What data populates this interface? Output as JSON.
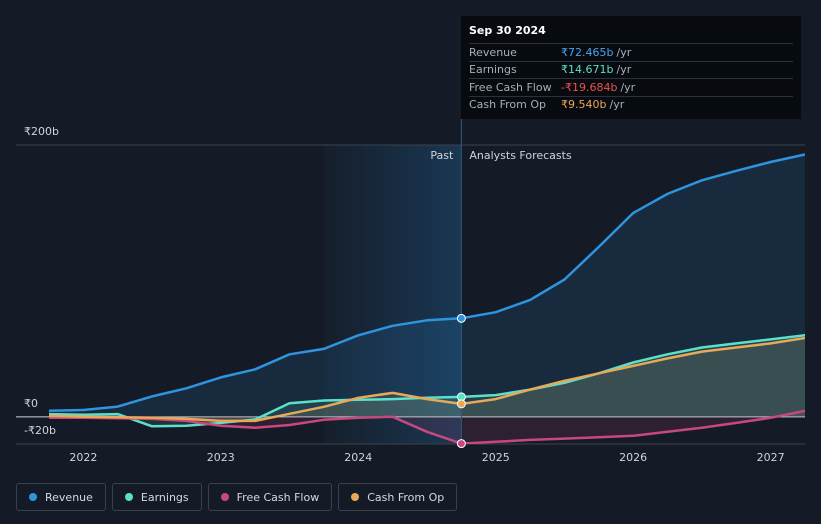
{
  "chart_data": {
    "type": "line",
    "past_label": "Past",
    "forecast_label": "Analysts Forecasts",
    "x": [
      2021.75,
      2022,
      2022.25,
      2022.5,
      2022.75,
      2023,
      2023.25,
      2023.5,
      2023.75,
      2024,
      2024.25,
      2024.5,
      2024.75,
      2025,
      2025.25,
      2025.5,
      2025.75,
      2026,
      2026.25,
      2026.5,
      2026.75,
      2027,
      2027.25
    ],
    "xlim": [
      2021.51,
      2027.25
    ],
    "xticks": [
      2022,
      2023,
      2024,
      2025,
      2026,
      2027
    ],
    "ylim": [
      -20,
      200
    ],
    "yticks": [
      {
        "value": 200,
        "label": "₹200b"
      },
      {
        "value": 0,
        "label": "₹0"
      },
      {
        "value": -20,
        "label": "-₹20b"
      }
    ],
    "grid": true,
    "series": [
      {
        "name": "Revenue",
        "color": "#2e94e0",
        "values": [
          4.4,
          5,
          7.5,
          15,
          21,
          29,
          35,
          46,
          50,
          60,
          67,
          71,
          72.465,
          77,
          86,
          101,
          125,
          150,
          164,
          174,
          181,
          187.5,
          193
        ]
      },
      {
        "name": "Earnings",
        "color": "#5ce0c8",
        "values": [
          2,
          1.5,
          2,
          -7,
          -6.6,
          -4.5,
          -2,
          10,
          12,
          12.5,
          13,
          14,
          14.671,
          16,
          20,
          25,
          32,
          40,
          46,
          51,
          54,
          57,
          60
        ]
      },
      {
        "name": "Free Cash Flow",
        "color": "#c7487f",
        "values": [
          -0.7,
          -0.7,
          -1,
          -1.5,
          -3,
          -6.6,
          -8,
          -6,
          -2.2,
          -0.7,
          0,
          -11,
          -19.684,
          -18.4,
          -17,
          -16,
          -15,
          -14,
          -11,
          -8,
          -4.5,
          -0.7,
          4.4
        ]
      },
      {
        "name": "Cash From Op",
        "color": "#e8a85a",
        "values": [
          0.7,
          0,
          -0.3,
          -0.7,
          -1.5,
          -3,
          -3,
          2.2,
          7.4,
          14,
          17.6,
          13,
          9.54,
          13,
          20,
          26.5,
          32,
          37.5,
          43,
          48,
          51,
          54,
          58
        ]
      }
    ],
    "tooltip": {
      "date": "Sep 30 2024",
      "x": 2024.75,
      "rows": [
        {
          "label": "Revenue",
          "value": 72.465,
          "value_label": "₹72.465b",
          "unit": "/yr",
          "color": "#4aa3f0"
        },
        {
          "label": "Earnings",
          "value": 14.671,
          "value_label": "₹14.671b",
          "unit": "/yr",
          "color": "#5ce0c8"
        },
        {
          "label": "Free Cash Flow",
          "value": -19.684,
          "value_label": "-₹19.684b",
          "unit": "/yr",
          "color": "#f0504f"
        },
        {
          "label": "Cash From Op",
          "value": 9.54,
          "value_label": "₹9.540b",
          "unit": "/yr",
          "color": "#e8a85a"
        }
      ]
    }
  }
}
